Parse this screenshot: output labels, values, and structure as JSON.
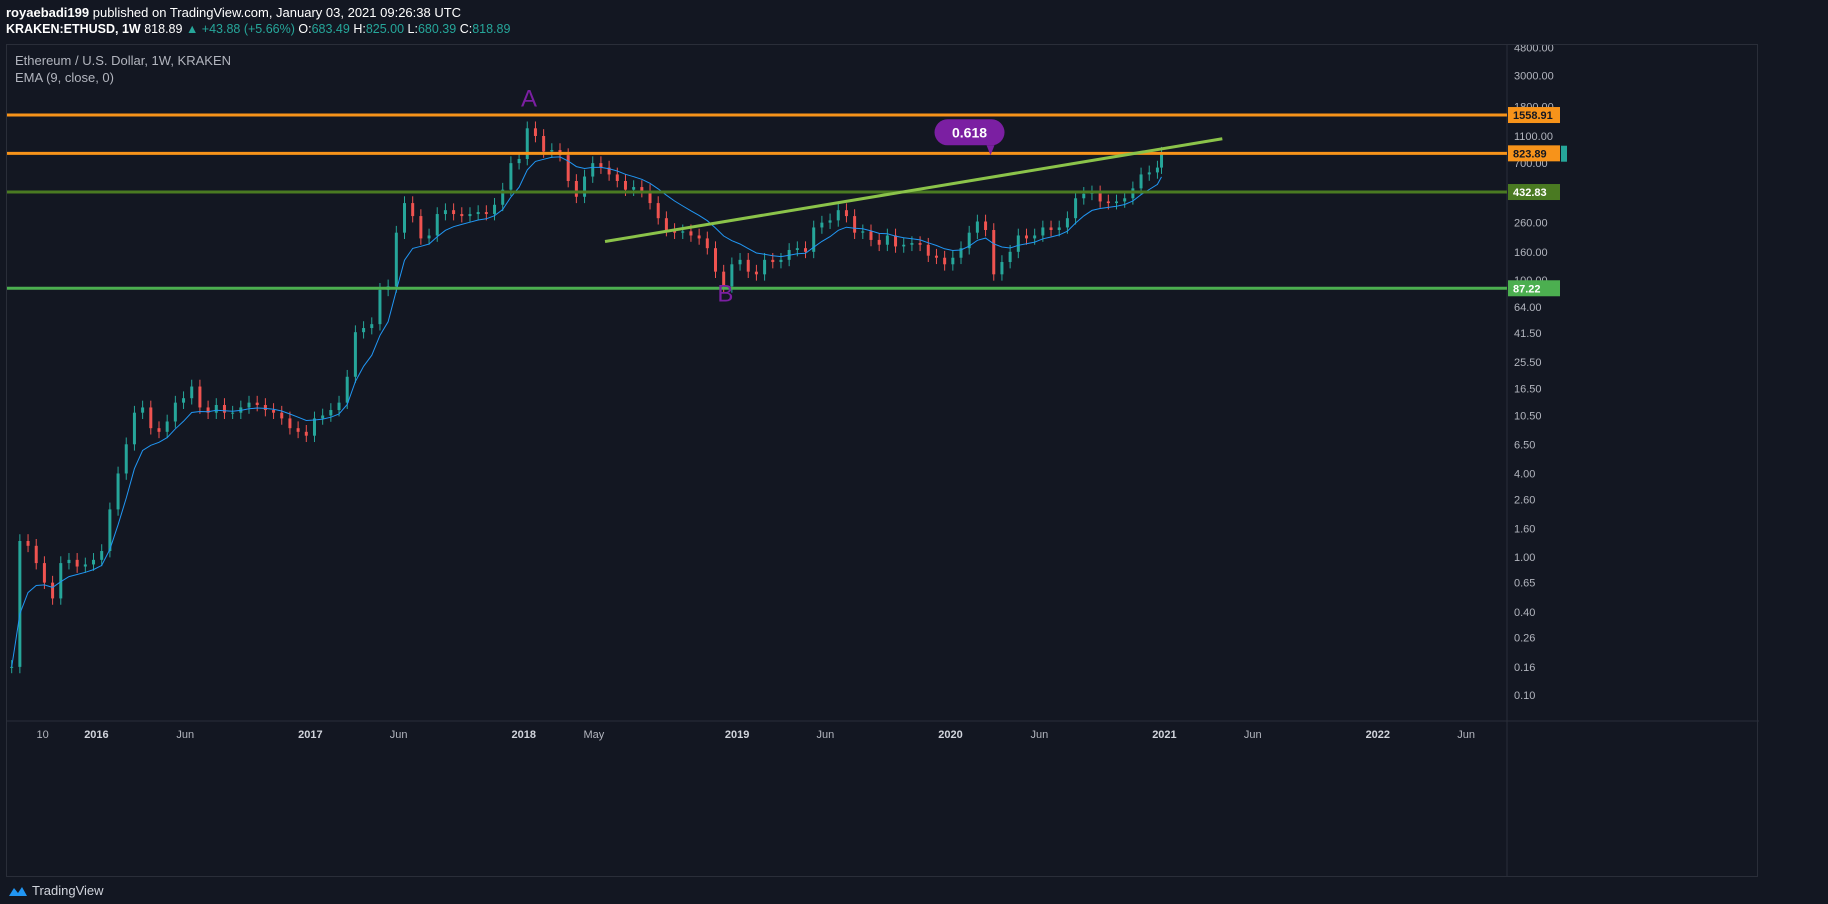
{
  "header": {
    "author": "royaebadi199",
    "published_text": "published on TradingView.com, January 03, 2021 09:26:38 UTC",
    "symbol": "KRAKEN:ETHUSD, 1W",
    "price": "818.89",
    "change": "▲ +43.88 (+5.66%)",
    "open_label": "O:",
    "open": "683.49",
    "high_label": "H:",
    "high": "825.00",
    "low_label": "L:",
    "low": "680.39",
    "close_label": "C:",
    "close": "818.89"
  },
  "legend": {
    "title": "Ethereum / U.S. Dollar, 1W, KRAKEN",
    "indicator": "EMA (9, close, 0)"
  },
  "footer": {
    "brand": "TradingView",
    "icon": "tradingview-logo-icon"
  },
  "colors": {
    "background": "#131722",
    "up": "#26a69a",
    "down": "#ef5350",
    "ema": "#2196f3",
    "orange": "#f7931a",
    "dark_green": "#4a7a22",
    "green": "#4caf50",
    "trendline": "#8bc34a",
    "purple": "#7b1fa2",
    "grid": "#1e222d"
  },
  "chart_data": {
    "type": "candlestick",
    "scale": "log",
    "timeframe": "1W",
    "x_ticks": [
      "10",
      "2016",
      "Jun",
      "2017",
      "Jun",
      "2018",
      "May",
      "2019",
      "Jun",
      "2020",
      "Jun",
      "2021",
      "Jun",
      "2022",
      "Jun"
    ],
    "y_ticks": [
      "4800.00",
      "3000.00",
      "1800.00",
      "1100.00",
      "700.00",
      "260.00",
      "160.00",
      "100.00",
      "64.00",
      "41.50",
      "25.50",
      "16.50",
      "10.50",
      "6.50",
      "4.00",
      "2.60",
      "1.60",
      "1.00",
      "0.65",
      "0.40",
      "0.26",
      "0.16",
      "0.10"
    ],
    "y_range": [
      0.065,
      5000
    ],
    "x_range": [
      "2015-08-01",
      "2022-08-10"
    ],
    "horizontal_levels": [
      {
        "price": 1558.91,
        "label": "1558.91",
        "color": "#f7931a"
      },
      {
        "price": 823.89,
        "label": "823.89",
        "color": "#f7931a"
      },
      {
        "price": 432.83,
        "label": "432.83",
        "color": "#4a7a22"
      },
      {
        "price": 87.22,
        "label": "87.22",
        "color": "#4caf50"
      }
    ],
    "current_price": {
      "value": 818.89,
      "color": "#26a69a"
    },
    "trendline": {
      "from": {
        "date": "2018-05-20",
        "price": 190
      },
      "to": {
        "date": "2021-04-10",
        "price": 1050
      },
      "color": "#8bc34a"
    },
    "annotations": [
      {
        "text": "A",
        "date": "2018-01-10",
        "price": 1800,
        "color": "#7b1fa2"
      },
      {
        "text": "B",
        "date": "2018-12-12",
        "price": 70,
        "color": "#7b1fa2"
      },
      {
        "text": "0.618",
        "date": "2020-01-25",
        "price": 1150,
        "type": "callout",
        "color": "#7b1fa2"
      }
    ],
    "series": [
      {
        "name": "ETHUSD",
        "kind": "close",
        "points": [
          [
            "2015-08-09",
            0.16
          ],
          [
            "2015-08-23",
            1.3
          ],
          [
            "2015-09-06",
            1.2
          ],
          [
            "2015-09-20",
            0.9
          ],
          [
            "2015-10-04",
            0.65
          ],
          [
            "2015-10-18",
            0.5
          ],
          [
            "2015-11-01",
            0.9
          ],
          [
            "2015-11-15",
            0.95
          ],
          [
            "2015-11-29",
            0.85
          ],
          [
            "2015-12-13",
            0.88
          ],
          [
            "2015-12-27",
            0.95
          ],
          [
            "2016-01-10",
            1.1
          ],
          [
            "2016-01-24",
            2.2
          ],
          [
            "2016-02-07",
            4.0
          ],
          [
            "2016-02-21",
            6.5
          ],
          [
            "2016-03-06",
            11
          ],
          [
            "2016-03-20",
            12
          ],
          [
            "2016-04-03",
            8.5
          ],
          [
            "2016-04-17",
            8.0
          ],
          [
            "2016-05-01",
            9.5
          ],
          [
            "2016-05-15",
            13
          ],
          [
            "2016-05-29",
            14
          ],
          [
            "2016-06-12",
            17
          ],
          [
            "2016-06-26",
            12
          ],
          [
            "2016-07-10",
            11
          ],
          [
            "2016-07-24",
            12.5
          ],
          [
            "2016-08-07",
            11
          ],
          [
            "2016-08-21",
            11
          ],
          [
            "2016-09-04",
            12
          ],
          [
            "2016-09-18",
            13
          ],
          [
            "2016-10-02",
            12.5
          ],
          [
            "2016-10-16",
            11.5
          ],
          [
            "2016-10-30",
            11
          ],
          [
            "2016-11-13",
            10
          ],
          [
            "2016-11-27",
            8.5
          ],
          [
            "2016-12-11",
            8.0
          ],
          [
            "2016-12-25",
            7.5
          ],
          [
            "2017-01-08",
            10
          ],
          [
            "2017-01-22",
            10.5
          ],
          [
            "2017-02-05",
            11.5
          ],
          [
            "2017-02-19",
            13
          ],
          [
            "2017-03-05",
            20
          ],
          [
            "2017-03-19",
            42
          ],
          [
            "2017-04-02",
            45
          ],
          [
            "2017-04-16",
            48
          ],
          [
            "2017-04-30",
            85
          ],
          [
            "2017-05-14",
            90
          ],
          [
            "2017-05-28",
            220
          ],
          [
            "2017-06-11",
            360
          ],
          [
            "2017-06-25",
            290
          ],
          [
            "2017-07-09",
            200
          ],
          [
            "2017-07-23",
            210
          ],
          [
            "2017-08-06",
            300
          ],
          [
            "2017-08-20",
            320
          ],
          [
            "2017-09-03",
            300
          ],
          [
            "2017-09-17",
            290
          ],
          [
            "2017-10-01",
            300
          ],
          [
            "2017-10-15",
            310
          ],
          [
            "2017-10-29",
            300
          ],
          [
            "2017-11-12",
            350
          ],
          [
            "2017-11-26",
            450
          ],
          [
            "2017-12-10",
            700
          ],
          [
            "2017-12-24",
            750
          ],
          [
            "2018-01-07",
            1250
          ],
          [
            "2018-01-21",
            1100
          ],
          [
            "2018-02-04",
            850
          ],
          [
            "2018-02-18",
            870
          ],
          [
            "2018-03-04",
            800
          ],
          [
            "2018-03-18",
            520
          ],
          [
            "2018-04-01",
            400
          ],
          [
            "2018-04-15",
            560
          ],
          [
            "2018-04-29",
            700
          ],
          [
            "2018-05-13",
            650
          ],
          [
            "2018-05-27",
            580
          ],
          [
            "2018-06-10",
            520
          ],
          [
            "2018-06-24",
            450
          ],
          [
            "2018-07-08",
            470
          ],
          [
            "2018-07-22",
            440
          ],
          [
            "2018-08-05",
            360
          ],
          [
            "2018-08-19",
            280
          ],
          [
            "2018-09-02",
            230
          ],
          [
            "2018-09-16",
            220
          ],
          [
            "2018-09-30",
            225
          ],
          [
            "2018-10-14",
            210
          ],
          [
            "2018-10-28",
            200
          ],
          [
            "2018-11-11",
            170
          ],
          [
            "2018-11-25",
            115
          ],
          [
            "2018-12-09",
            90
          ],
          [
            "2018-12-23",
            130
          ],
          [
            "2019-01-06",
            140
          ],
          [
            "2019-01-20",
            115
          ],
          [
            "2019-02-03",
            110
          ],
          [
            "2019-02-17",
            140
          ],
          [
            "2019-03-03",
            135
          ],
          [
            "2019-03-17",
            140
          ],
          [
            "2019-03-31",
            165
          ],
          [
            "2019-04-14",
            170
          ],
          [
            "2019-04-28",
            160
          ],
          [
            "2019-05-12",
            240
          ],
          [
            "2019-05-26",
            260
          ],
          [
            "2019-06-09",
            270
          ],
          [
            "2019-06-23",
            320
          ],
          [
            "2019-07-07",
            290
          ],
          [
            "2019-07-21",
            220
          ],
          [
            "2019-08-04",
            225
          ],
          [
            "2019-08-18",
            195
          ],
          [
            "2019-09-01",
            180
          ],
          [
            "2019-09-15",
            210
          ],
          [
            "2019-09-29",
            175
          ],
          [
            "2019-10-13",
            180
          ],
          [
            "2019-10-27",
            185
          ],
          [
            "2019-11-10",
            180
          ],
          [
            "2019-11-24",
            150
          ],
          [
            "2019-12-08",
            145
          ],
          [
            "2019-12-22",
            130
          ],
          [
            "2020-01-05",
            145
          ],
          [
            "2020-01-19",
            170
          ],
          [
            "2020-02-02",
            220
          ],
          [
            "2020-02-16",
            265
          ],
          [
            "2020-03-01",
            230
          ],
          [
            "2020-03-15",
            110
          ],
          [
            "2020-03-29",
            135
          ],
          [
            "2020-04-12",
            160
          ],
          [
            "2020-04-26",
            210
          ],
          [
            "2020-05-10",
            200
          ],
          [
            "2020-05-24",
            210
          ],
          [
            "2020-06-07",
            240
          ],
          [
            "2020-06-21",
            230
          ],
          [
            "2020-07-05",
            240
          ],
          [
            "2020-07-19",
            280
          ],
          [
            "2020-08-02",
            390
          ],
          [
            "2020-08-16",
            420
          ],
          [
            "2020-08-30",
            430
          ],
          [
            "2020-09-13",
            370
          ],
          [
            "2020-09-27",
            360
          ],
          [
            "2020-10-11",
            370
          ],
          [
            "2020-10-25",
            390
          ],
          [
            "2020-11-08",
            460
          ],
          [
            "2020-11-22",
            580
          ],
          [
            "2020-12-06",
            600
          ],
          [
            "2020-12-20",
            650
          ],
          [
            "2020-12-27",
            818.89
          ]
        ]
      }
    ]
  }
}
